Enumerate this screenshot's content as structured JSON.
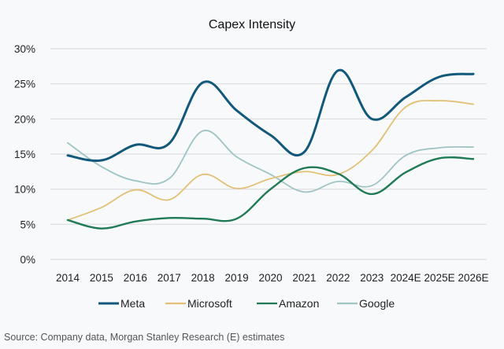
{
  "chart_data": {
    "type": "line",
    "title": "Capex Intensity",
    "xlabel": "",
    "ylabel": "",
    "categories": [
      "2014",
      "2015",
      "2016",
      "2017",
      "2018",
      "2019",
      "2020",
      "2021",
      "2022",
      "2023",
      "2024E",
      "2025E",
      "2026E"
    ],
    "ylim": [
      0,
      30
    ],
    "yticks": [
      0,
      5,
      10,
      15,
      20,
      25,
      30
    ],
    "ytick_labels": [
      "0%",
      "5%",
      "10%",
      "15%",
      "20%",
      "25%",
      "30%"
    ],
    "grid": true,
    "smooth": true,
    "legend_position": "bottom",
    "series": [
      {
        "name": "Meta",
        "color": "#12587a",
        "values": [
          14.8,
          14.1,
          16.3,
          16.5,
          25.2,
          21.2,
          17.7,
          15.3,
          26.9,
          20.0,
          23.1,
          26.0,
          26.4
        ]
      },
      {
        "name": "Microsoft",
        "color": "#e2c177",
        "values": [
          5.6,
          7.4,
          9.9,
          8.5,
          12.1,
          10.1,
          11.5,
          12.5,
          12.1,
          15.5,
          21.7,
          22.6,
          22.1
        ]
      },
      {
        "name": "Amazon",
        "color": "#1f7a55",
        "values": [
          5.6,
          4.4,
          5.4,
          5.9,
          5.8,
          5.8,
          10.0,
          13.0,
          12.2,
          9.3,
          12.4,
          14.4,
          14.3
        ]
      },
      {
        "name": "Google",
        "color": "#9fc4c4",
        "values": [
          16.6,
          13.2,
          11.2,
          11.5,
          18.3,
          14.6,
          12.1,
          9.6,
          11.1,
          10.5,
          14.8,
          15.9,
          16.0
        ]
      }
    ]
  },
  "source": "Source: Company data, Morgan Stanley Research (E) estimates"
}
